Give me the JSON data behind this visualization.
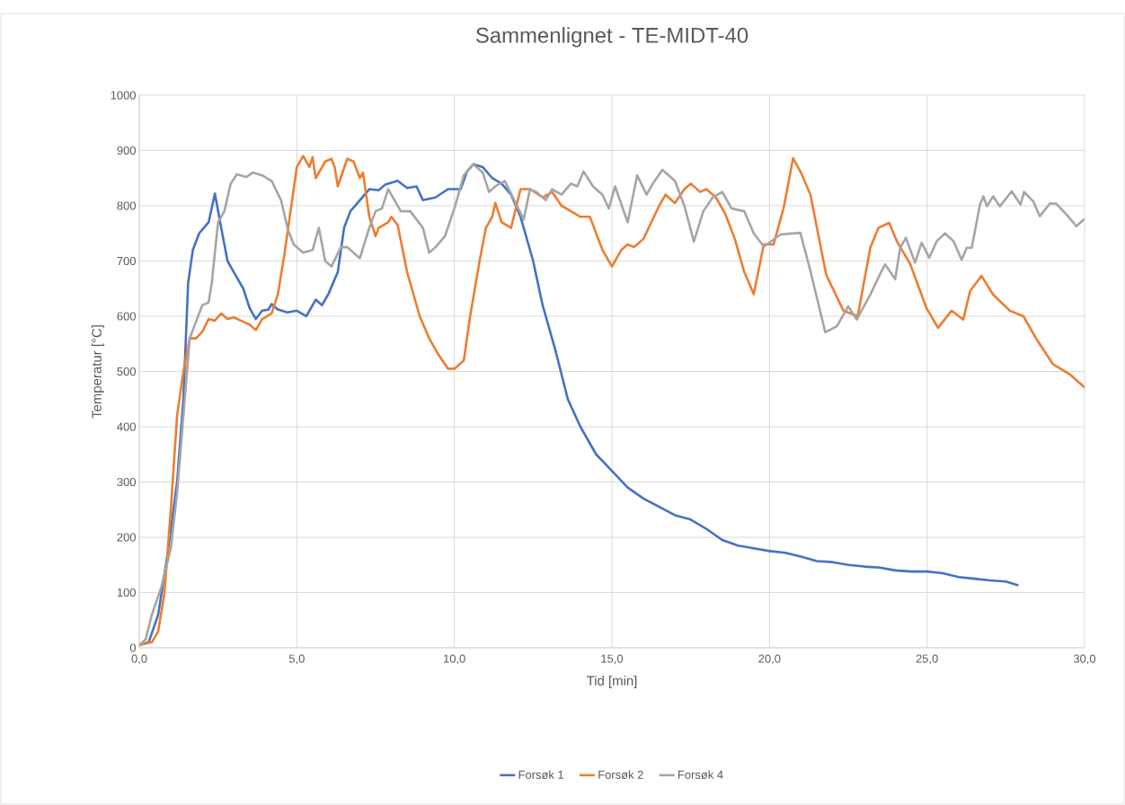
{
  "chart_data": {
    "type": "line",
    "title": "Sammenlignet - TE-MIDT-40",
    "xlabel": "Tid [min]",
    "ylabel": "Temperatur [°C]",
    "xlim": [
      0,
      30
    ],
    "ylim": [
      0,
      1000
    ],
    "xticks": [
      {
        "value": 0,
        "label": "0,0"
      },
      {
        "value": 5,
        "label": "5,0"
      },
      {
        "value": 10,
        "label": "10,0"
      },
      {
        "value": 15,
        "label": "15,0"
      },
      {
        "value": 20,
        "label": "20,0"
      },
      {
        "value": 25,
        "label": "25,0"
      },
      {
        "value": 30,
        "label": "30,0"
      }
    ],
    "yticks": [
      0,
      100,
      200,
      300,
      400,
      500,
      600,
      700,
      800,
      900,
      1000
    ],
    "grid": true,
    "legend": "bottom",
    "marker": "none",
    "line_style": "solid",
    "series": [
      {
        "name": "Forsøk 1",
        "color": "#4472c4",
        "x": [
          0,
          0.3,
          0.6,
          0.9,
          1.2,
          1.4,
          1.55,
          1.7,
          1.9,
          2.2,
          2.4,
          2.6,
          2.8,
          3.0,
          3.3,
          3.5,
          3.7,
          3.9,
          4.1,
          4.2,
          4.4,
          4.7,
          5.0,
          5.3,
          5.6,
          5.8,
          6.0,
          6.3,
          6.5,
          6.7,
          7.0,
          7.3,
          7.6,
          7.8,
          8.2,
          8.5,
          8.8,
          9.0,
          9.4,
          9.8,
          10.2,
          10.4,
          10.6,
          10.9,
          11.2,
          11.5,
          11.8,
          12.1,
          12.5,
          12.8,
          13.2,
          13.6,
          14.0,
          14.5,
          15.0,
          15.5,
          16.0,
          16.5,
          17.0,
          17.5,
          18.0,
          18.5,
          19.0,
          19.5,
          20.0,
          20.5,
          21.0,
          21.5,
          22.0,
          22.5,
          23.0,
          23.5,
          24.0,
          24.5,
          25.0,
          25.5,
          26.0,
          26.5,
          27.0,
          27.5,
          27.9
        ],
        "values": [
          5,
          10,
          60,
          170,
          300,
          450,
          660,
          720,
          750,
          770,
          822,
          760,
          700,
          680,
          650,
          615,
          595,
          610,
          612,
          622,
          612,
          607,
          610,
          600,
          630,
          620,
          640,
          680,
          760,
          790,
          810,
          830,
          828,
          838,
          845,
          832,
          835,
          810,
          815,
          830,
          830,
          862,
          875,
          870,
          850,
          840,
          820,
          780,
          700,
          620,
          540,
          450,
          400,
          350,
          320,
          290,
          270,
          255,
          240,
          232,
          215,
          195,
          185,
          180,
          175,
          172,
          165,
          157,
          155,
          150,
          147,
          145,
          140,
          138,
          138,
          135,
          128,
          125,
          122,
          120,
          113
        ]
      },
      {
        "name": "Forsøk 2",
        "color": "#ed7d31",
        "x": [
          0,
          0.4,
          0.6,
          0.8,
          1.0,
          1.2,
          1.4,
          1.6,
          1.8,
          2.0,
          2.2,
          2.4,
          2.6,
          2.8,
          3.0,
          3.3,
          3.5,
          3.7,
          3.9,
          4.2,
          4.4,
          4.6,
          4.8,
          5.0,
          5.2,
          5.4,
          5.5,
          5.6,
          5.9,
          6.1,
          6.2,
          6.3,
          6.6,
          6.8,
          7.0,
          7.1,
          7.3,
          7.5,
          7.6,
          7.9,
          8.0,
          8.2,
          8.5,
          8.9,
          9.2,
          9.5,
          9.8,
          10.0,
          10.3,
          10.5,
          10.8,
          11.0,
          11.2,
          11.3,
          11.5,
          11.8,
          12.1,
          12.4,
          12.8,
          13.1,
          13.4,
          13.7,
          14.0,
          14.3,
          14.7,
          15.0,
          15.3,
          15.5,
          15.7,
          16.0,
          16.5,
          16.7,
          17.0,
          17.3,
          17.5,
          17.8,
          18.0,
          18.3,
          18.6,
          18.9,
          19.2,
          19.5,
          19.82,
          20.13,
          20.45,
          20.75,
          21.0,
          21.3,
          21.8,
          22.35,
          22.8,
          23.2,
          23.46,
          23.8,
          24.04,
          24.47,
          24.98,
          25.35,
          25.78,
          26.15,
          26.37,
          26.73,
          27.1,
          27.63,
          28.06,
          28.48,
          29.0,
          29.53,
          30.0
        ],
        "values": [
          5,
          10,
          30,
          100,
          250,
          420,
          500,
          560,
          560,
          572,
          595,
          592,
          605,
          595,
          598,
          590,
          585,
          575,
          595,
          605,
          640,
          710,
          790,
          870,
          890,
          870,
          888,
          850,
          880,
          885,
          870,
          835,
          885,
          880,
          850,
          860,
          780,
          745,
          760,
          770,
          780,
          765,
          680,
          600,
          560,
          530,
          505,
          505,
          520,
          600,
          700,
          760,
          780,
          805,
          770,
          760,
          830,
          830,
          815,
          825,
          800,
          790,
          780,
          780,
          720,
          690,
          720,
          730,
          725,
          740,
          800,
          820,
          805,
          830,
          840,
          825,
          830,
          815,
          785,
          740,
          680,
          640,
          730,
          730,
          796,
          886,
          860,
          820,
          675,
          610,
          600,
          724,
          760,
          769,
          736,
          694,
          615,
          579,
          610,
          594,
          646,
          673,
          639,
          610,
          600,
          558,
          513,
          495,
          471
        ]
      },
      {
        "name": "Forsøk 4",
        "color": "#a5a5a5",
        "x": [
          0,
          0.2,
          0.4,
          0.7,
          1.0,
          1.2,
          1.4,
          1.6,
          1.8,
          2.0,
          2.2,
          2.3,
          2.5,
          2.7,
          2.9,
          3.1,
          3.4,
          3.6,
          3.9,
          4.2,
          4.5,
          4.7,
          4.9,
          5.2,
          5.5,
          5.7,
          5.9,
          6.1,
          6.4,
          6.6,
          7.0,
          7.3,
          7.5,
          7.7,
          7.9,
          8.1,
          8.3,
          8.6,
          9.0,
          9.2,
          9.4,
          9.7,
          10.0,
          10.3,
          10.6,
          10.9,
          11.1,
          11.3,
          11.6,
          11.9,
          12.2,
          12.4,
          12.6,
          12.9,
          13.1,
          13.4,
          13.7,
          13.9,
          14.1,
          14.4,
          14.7,
          14.9,
          15.1,
          15.5,
          15.8,
          16.1,
          16.3,
          16.6,
          17.0,
          17.3,
          17.6,
          17.9,
          18.2,
          18.5,
          18.8,
          19.2,
          19.5,
          19.82,
          20.35,
          20.98,
          21.3,
          21.77,
          22.14,
          22.5,
          22.77,
          23.2,
          23.5,
          23.67,
          23.99,
          24.15,
          24.33,
          24.62,
          24.83,
          25.07,
          25.31,
          25.57,
          25.84,
          26.1,
          26.26,
          26.42,
          26.68,
          26.79,
          26.9,
          27.1,
          27.31,
          27.69,
          27.97,
          28.08,
          28.37,
          28.58,
          28.9,
          29.1,
          29.43,
          29.74,
          30.0
        ],
        "values": [
          5,
          15,
          60,
          110,
          180,
          280,
          420,
          560,
          590,
          620,
          625,
          660,
          770,
          790,
          840,
          857,
          852,
          860,
          855,
          845,
          810,
          760,
          730,
          715,
          720,
          760,
          700,
          690,
          725,
          725,
          705,
          760,
          790,
          795,
          830,
          810,
          790,
          790,
          760,
          715,
          725,
          745,
          795,
          855,
          875,
          860,
          825,
          835,
          845,
          810,
          775,
          830,
          825,
          810,
          830,
          820,
          840,
          835,
          862,
          835,
          820,
          795,
          835,
          770,
          855,
          820,
          840,
          865,
          845,
          800,
          735,
          790,
          815,
          825,
          795,
          790,
          750,
          726,
          748,
          751,
          682,
          571,
          582,
          618,
          594,
          639,
          675,
          694,
          667,
          724,
          742,
          697,
          733,
          706,
          736,
          750,
          736,
          702,
          724,
          724,
          802,
          817,
          799,
          817,
          799,
          826,
          802,
          825,
          808,
          781,
          804,
          804,
          784,
          763,
          776
        ]
      }
    ]
  }
}
